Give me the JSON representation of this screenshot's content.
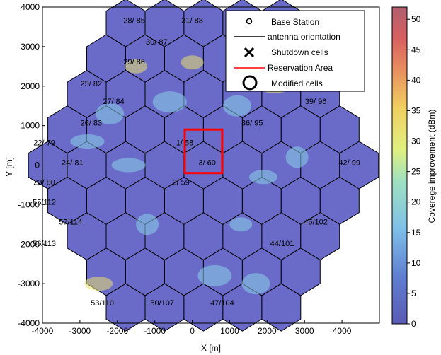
{
  "chart_data": {
    "type": "heatmap",
    "xlabel": "X [m]",
    "ylabel": "Y [m]",
    "xlim": [
      -4000,
      5000
    ],
    "ylim": [
      -4000,
      4000
    ],
    "xticks": [
      -4000,
      -3000,
      -2000,
      -1000,
      0,
      1000,
      2000,
      3000,
      4000
    ],
    "yticks": [
      -4000,
      -3000,
      -2000,
      -1000,
      0,
      1000,
      2000,
      3000,
      4000
    ],
    "colorbar": {
      "label": "Coverege improvement (dBm)",
      "min": 0,
      "max": 52,
      "ticks": [
        0,
        5,
        10,
        15,
        20,
        25,
        30,
        35,
        40,
        45,
        50
      ],
      "colors": [
        "#5a5ab4",
        "#5f7fd0",
        "#7fc0e8",
        "#9fe0c0",
        "#e0f080",
        "#f0d060",
        "#e89060",
        "#d86060",
        "#b06070"
      ]
    },
    "hex_fill": "#6a6ac8",
    "legend": {
      "placement": "top-right",
      "entries": [
        {
          "label": "Base Station",
          "marker": "small-circle"
        },
        {
          "label": "antenna orientation",
          "marker": "black-line"
        },
        {
          "label": "Shutdown cells",
          "marker": "x"
        },
        {
          "label": "Reservation Area",
          "marker": "red-line"
        },
        {
          "label": "Modified cells",
          "marker": "large-circle"
        }
      ]
    },
    "reservation_area": {
      "x": [
        -200,
        800
      ],
      "y": [
        -200,
        900
      ],
      "color": "#ff0000"
    },
    "cell_labels": [
      {
        "label": "28/ 85",
        "x": -1550,
        "y": 3600
      },
      {
        "label": "31/ 88",
        "x": 0,
        "y": 3600
      },
      {
        "label": "29/ 86",
        "x": -1550,
        "y": 2550
      },
      {
        "label": "30/ 87",
        "x": -950,
        "y": 3050
      },
      {
        "label": "25/ 82",
        "x": -2700,
        "y": 2000
      },
      {
        "label": "27/ 84",
        "x": -2100,
        "y": 1550
      },
      {
        "label": "26/ 83",
        "x": -2700,
        "y": 1000
      },
      {
        "label": "22/ 79",
        "x": -3950,
        "y": 500
      },
      {
        "label": "23/ 80",
        "x": -3950,
        "y": -500
      },
      {
        "label": "24/ 81",
        "x": -3200,
        "y": 0
      },
      {
        "label": "55/112",
        "x": -3950,
        "y": -1000
      },
      {
        "label": "57/114",
        "x": -3250,
        "y": -1500
      },
      {
        "label": "56/113",
        "x": -3950,
        "y": -2050
      },
      {
        "label": "53/110",
        "x": -2400,
        "y": -3550
      },
      {
        "label": "50/107",
        "x": -800,
        "y": -3550
      },
      {
        "label": "47/104",
        "x": 800,
        "y": -3550
      },
      {
        "label": "44/101",
        "x": 2400,
        "y": -2050
      },
      {
        "label": "45/102",
        "x": 3300,
        "y": -1500
      },
      {
        "label": "42/ 99",
        "x": 4200,
        "y": 0
      },
      {
        "label": "39/ 96",
        "x": 3300,
        "y": 1550
      },
      {
        "label": "36/ 95",
        "x": 1600,
        "y": 1000
      },
      {
        "label": "1/ 58",
        "x": -200,
        "y": 500
      },
      {
        "label": "2/ 59",
        "x": -300,
        "y": -500
      },
      {
        "label": "3/ 60",
        "x": 400,
        "y": 0
      }
    ]
  }
}
